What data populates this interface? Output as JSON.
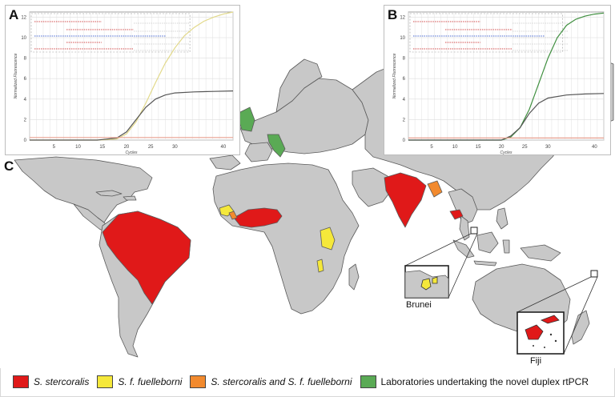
{
  "panels": {
    "a_letter": "A",
    "b_letter": "B",
    "c_letter": "C"
  },
  "insets": {
    "brunei": "Brunei",
    "fiji": "Fiji"
  },
  "colors": {
    "ocean": "#ffffff",
    "land": "#c8c8c8",
    "border": "#5a5a5a",
    "s_stercoralis": "#e01919",
    "s_f_fuelleborni": "#f5e83a",
    "both": "#f28a2e",
    "laboratories": "#5aaa55"
  },
  "legend": [
    {
      "key": "s_stercoralis",
      "color": "#e01919",
      "label": "S. stercoralis"
    },
    {
      "key": "s_f_fuelleborni",
      "color": "#f5e83a",
      "label": "S. f. fuelleborni"
    },
    {
      "key": "both",
      "color": "#f28a2e",
      "label": "S. stercoralis and S. f. fuelleborni"
    },
    {
      "key": "laboratories",
      "color": "#5aaa55",
      "label": "Laboratories undertaking the novel duplex rtPCR"
    }
  ],
  "chart_data": [
    {
      "type": "line",
      "panel": "A",
      "xlabel": "Cycles",
      "ylabel": "Normalized Fluorescence",
      "x_ticks": [
        5,
        10,
        15,
        20,
        25,
        30,
        40
      ],
      "y_ticks": [
        0,
        2,
        4,
        6,
        8,
        10,
        12
      ],
      "xlim": [
        0,
        42
      ],
      "ylim": [
        0,
        12.5
      ],
      "series": [
        {
          "color": "#e2d98a",
          "x": [
            0,
            14,
            18,
            20,
            22,
            24,
            26,
            28,
            30,
            32,
            34,
            36,
            38,
            40,
            42
          ],
          "y": [
            0,
            0,
            0.1,
            0.6,
            1.8,
            3.6,
            5.6,
            7.5,
            9.0,
            10.2,
            11.0,
            11.6,
            12.0,
            12.3,
            12.5
          ]
        },
        {
          "color": "#555555",
          "x": [
            0,
            14,
            18,
            20,
            22,
            24,
            26,
            28,
            30,
            34,
            38,
            42
          ],
          "y": [
            0,
            0,
            0.2,
            0.8,
            2.0,
            3.2,
            4.0,
            4.4,
            4.6,
            4.7,
            4.75,
            4.8
          ]
        },
        {
          "color": "#e8a090",
          "x": [
            0,
            42
          ],
          "y": [
            0.25,
            0.25
          ]
        }
      ]
    },
    {
      "type": "line",
      "panel": "B",
      "xlabel": "Cycles",
      "ylabel": "Normalized Fluorescence",
      "x_ticks": [
        5,
        10,
        15,
        20,
        25,
        30,
        40
      ],
      "y_ticks": [
        0,
        2,
        4,
        6,
        8,
        10,
        12
      ],
      "xlim": [
        0,
        42
      ],
      "ylim": [
        0,
        12.5
      ],
      "series": [
        {
          "color": "#3f8f3f",
          "x": [
            0,
            20,
            22,
            24,
            26,
            28,
            30,
            32,
            34,
            36,
            38,
            40,
            42
          ],
          "y": [
            0,
            0,
            0.3,
            1.2,
            3.0,
            5.5,
            8.0,
            10.0,
            11.2,
            11.8,
            12.1,
            12.3,
            12.4
          ]
        },
        {
          "color": "#555555",
          "x": [
            0,
            20,
            22,
            24,
            26,
            28,
            30,
            34,
            38,
            42
          ],
          "y": [
            0,
            0,
            0.4,
            1.2,
            2.6,
            3.6,
            4.1,
            4.4,
            4.5,
            4.55
          ]
        },
        {
          "color": "#e8a090",
          "x": [
            0,
            42
          ],
          "y": [
            0.2,
            0.2
          ]
        }
      ]
    }
  ]
}
